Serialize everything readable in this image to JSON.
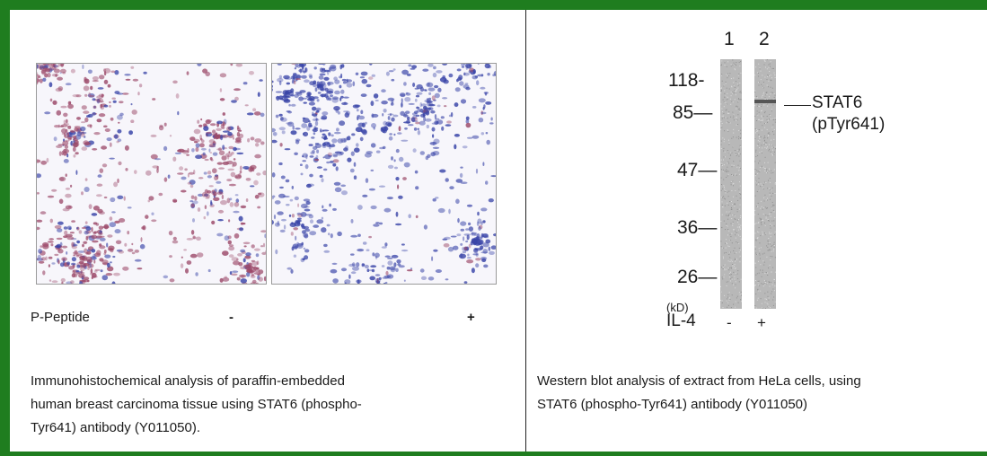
{
  "ihc": {
    "peptide_label": "P-Peptide",
    "minus": "-",
    "plus": "+",
    "caption_lines": [
      "Immunohistochemical analysis of paraffin-embedded",
      "human breast carcinoma tissue using STAT6 (phospho-",
      "Tyr641) antibody (Y011050)."
    ]
  },
  "western": {
    "lane_labels": [
      "1",
      "2"
    ],
    "markers": [
      "118-",
      "85—",
      "47—",
      "36—",
      "26—"
    ],
    "unit": "(kD)",
    "treatment_label": "IL-4",
    "treatment_values": [
      "-",
      "+"
    ],
    "band_label_line1": "STAT6",
    "band_label_line2": "(pTyr641)",
    "caption_lines": [
      "Western blot analysis of extract from HeLa cells, using",
      "STAT6 (phospho-Tyr641) antibody (Y011050)"
    ]
  },
  "colors": {
    "frame": "#1f7d1f",
    "stain_positive": "#9c4a6a",
    "stain_hematoxylin": "#3a45a8"
  }
}
